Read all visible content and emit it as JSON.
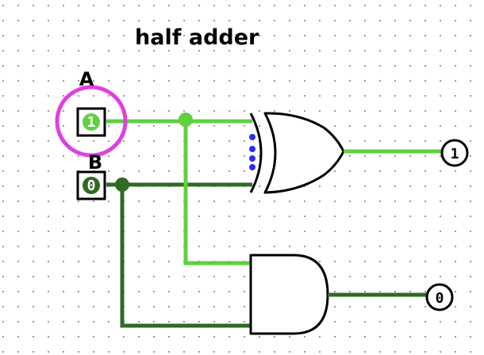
{
  "title": "half adder",
  "inputs": {
    "a": {
      "label": "A",
      "value": "1"
    },
    "b": {
      "label": "B",
      "value": "0"
    }
  },
  "outputs": {
    "sum": {
      "value": "1"
    },
    "carry": {
      "value": "0"
    }
  },
  "colors": {
    "wire_high": "#5fd13f",
    "wire_low": "#2f6b24",
    "selection": "#e040e0",
    "xor_input_dots": "#2b2bff",
    "grid_dot": "#9a9a9a"
  }
}
